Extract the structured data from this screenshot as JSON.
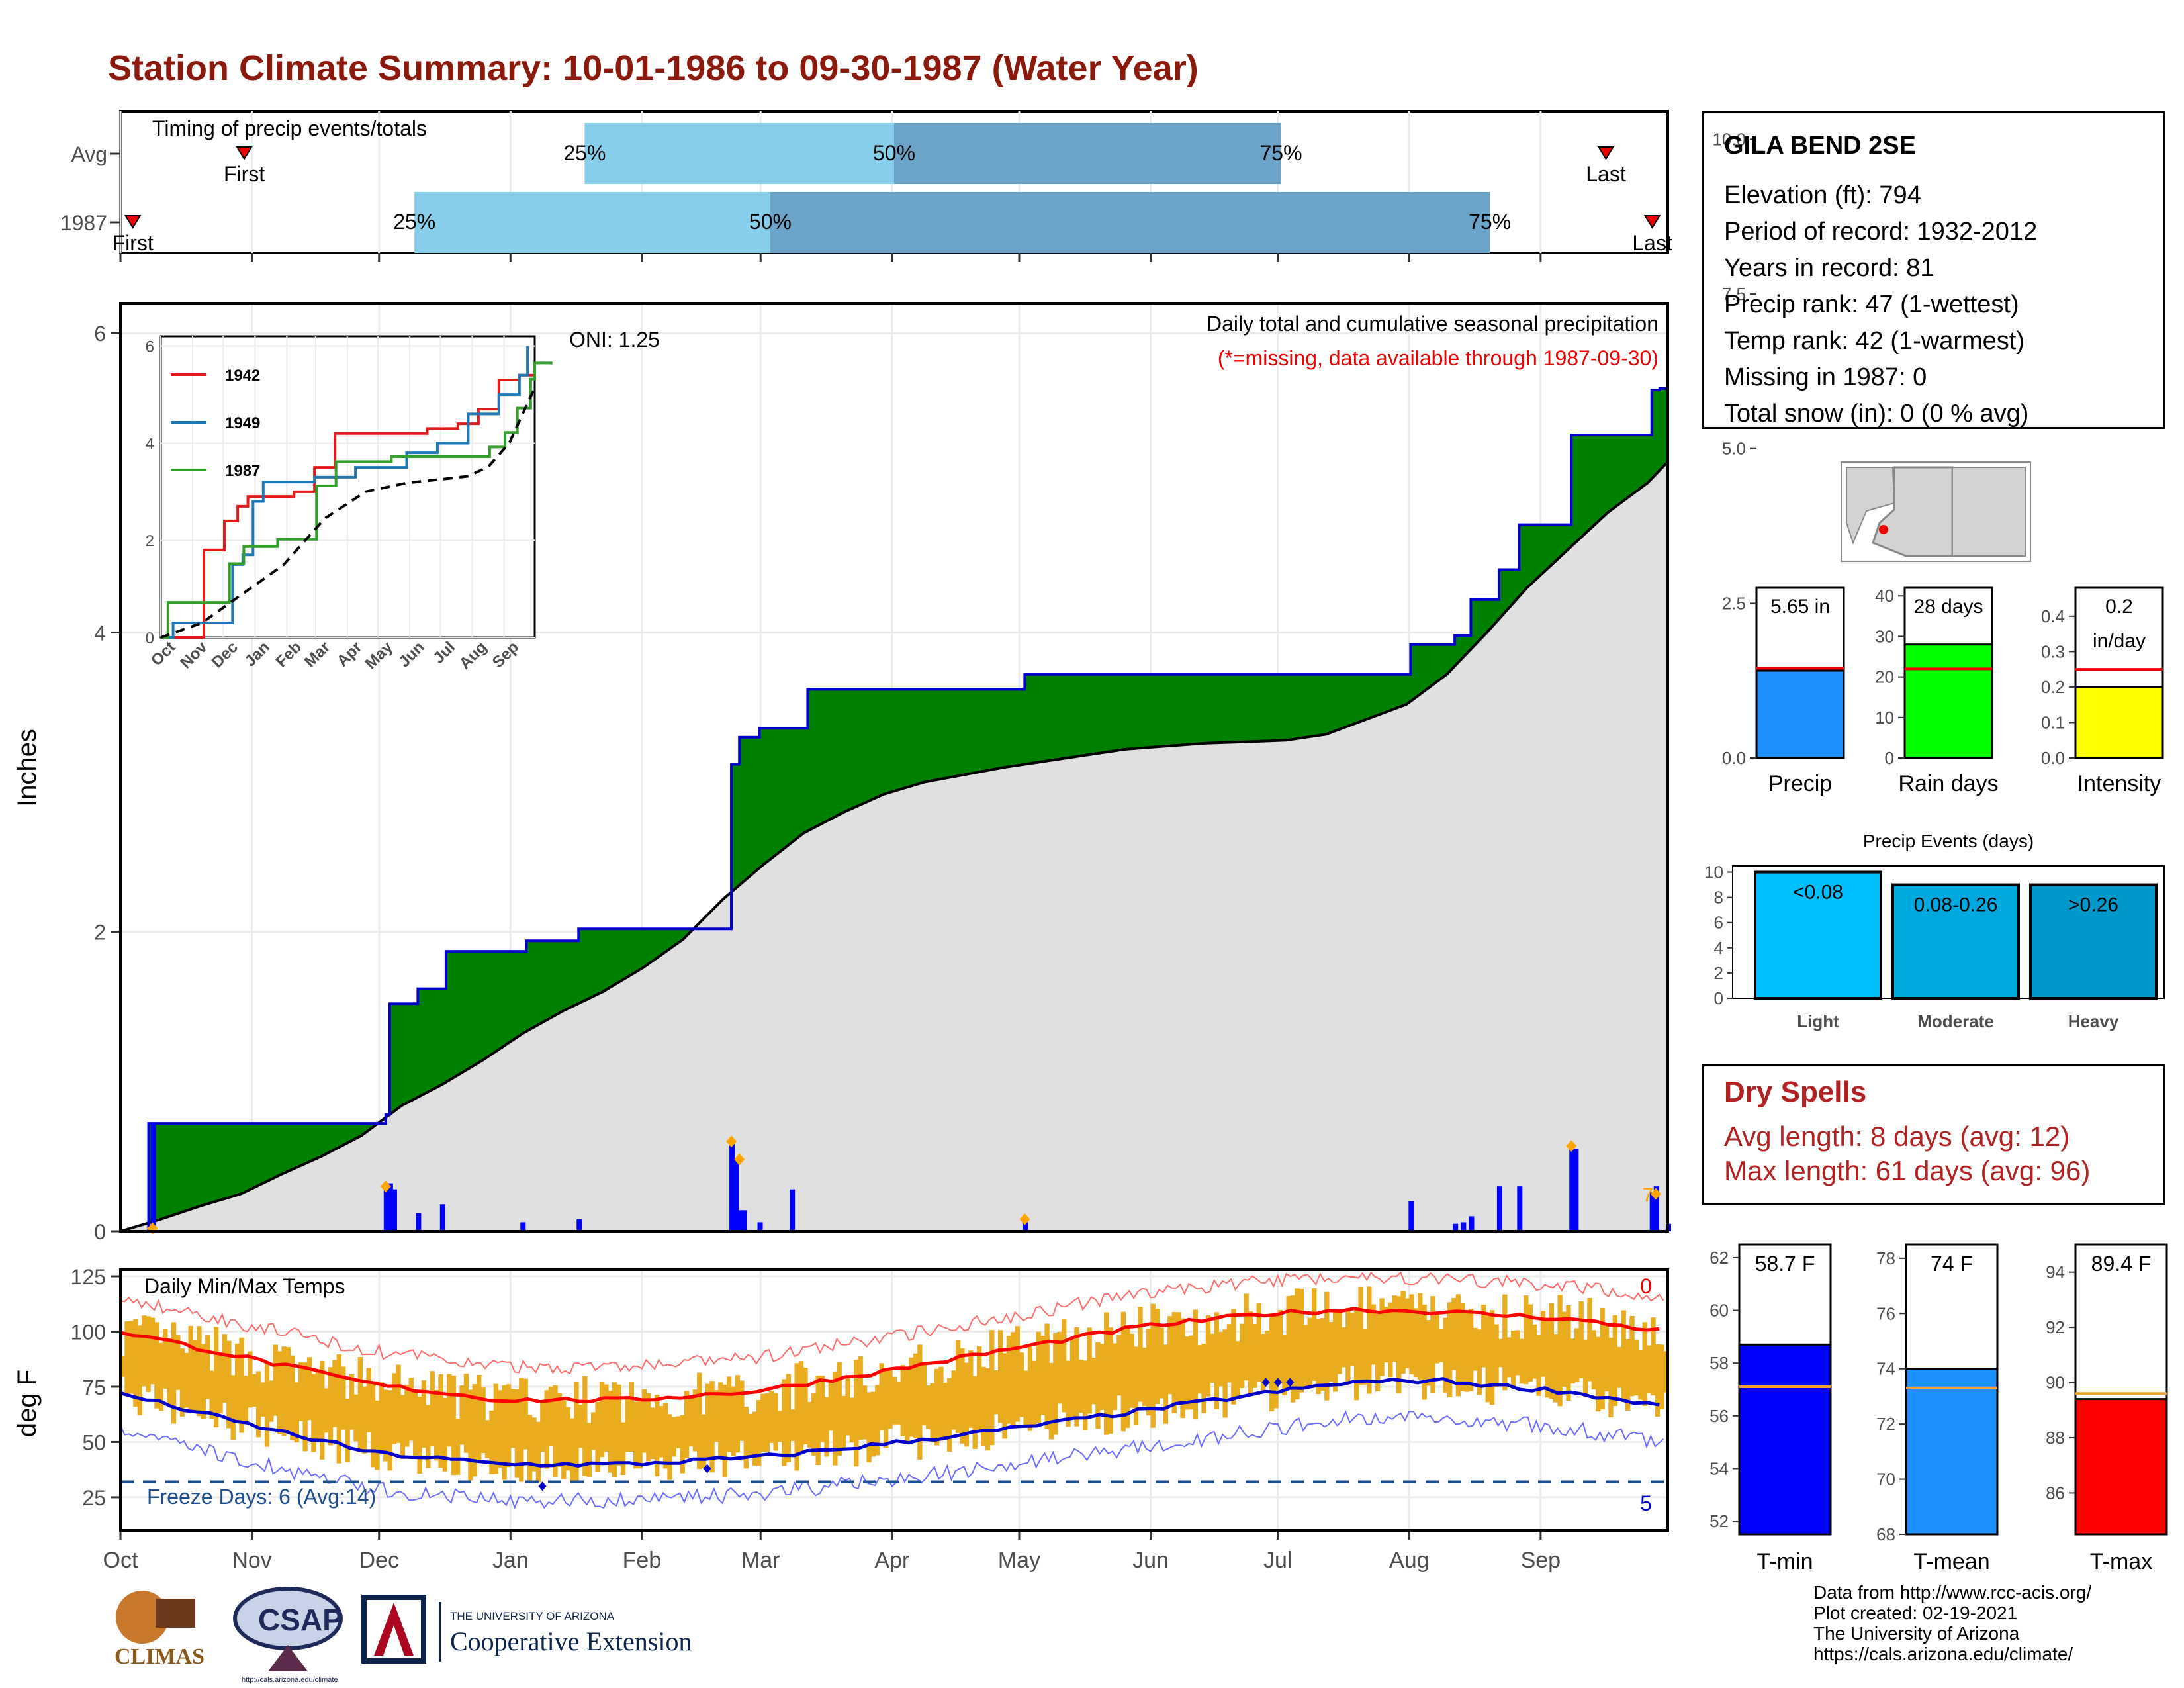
{
  "title": "Station Climate Summary: 10-01-1986 to 09-30-1987 (Water Year)",
  "station": {
    "name": "GILA BEND 2SE",
    "lines": [
      "Elevation (ft): 794",
      "Period of record: 1932-2012",
      "Years in record: 81",
      "Precip rank: 47 (1-wettest)",
      "Temp rank: 42 (1-warmest)",
      "Missing in 1987: 0",
      "Total snow (in): 0 (0 % avg)"
    ]
  },
  "timing": {
    "title": "Timing of precip events/totals",
    "rows": [
      "Avg",
      "1987"
    ],
    "first_label": "First",
    "last_label": "Last",
    "pct_labels": [
      "25%",
      "50%",
      "75%"
    ],
    "avg": {
      "first": 0.08,
      "p25": 0.3,
      "p50": 0.5,
      "p75": 0.75,
      "last": 0.96
    },
    "y1987": {
      "first": 0.008,
      "p25": 0.19,
      "p50": 0.42,
      "p75": 0.885,
      "last": 0.99
    }
  },
  "months": [
    "Oct",
    "Nov",
    "Dec",
    "Jan",
    "Feb",
    "Mar",
    "Apr",
    "May",
    "Jun",
    "Jul",
    "Aug",
    "Sep"
  ],
  "precip_panel": {
    "ylabel": "Inches",
    "ylim": [
      0,
      6.2
    ],
    "yticks": [
      "0",
      "2",
      "4",
      "6"
    ],
    "note_title": "Daily total and cumulative seasonal precipitation",
    "note_missing": "(*=missing, data available through 1987-09-30)",
    "oni": "ONI: 1.25",
    "right_note": "7"
  },
  "inset": {
    "yticks": [
      "0",
      "2",
      "4",
      "6"
    ],
    "months": [
      "Oct",
      "Nov",
      "Dec",
      "Jan",
      "Feb",
      "Mar",
      "Apr",
      "May",
      "Jun",
      "Jul",
      "Aug",
      "Sep"
    ],
    "legend": [
      {
        "label": "1942",
        "color": "#e31a1c"
      },
      {
        "label": "1949",
        "color": "#1f78b4"
      },
      {
        "label": "1987",
        "color": "#33a02c"
      }
    ]
  },
  "temp_panel": {
    "title": "Daily Min/Max Temps",
    "ylabel": "deg F",
    "ylim": [
      10,
      128
    ],
    "yticks": [
      "25",
      "50",
      "75",
      "100",
      "125"
    ],
    "freeze_label": "Freeze Days: 6 (Avg:14)",
    "freeze_line": 32,
    "hot_count": "0",
    "cold_count": "5"
  },
  "mini_bars": [
    {
      "label": "Precip",
      "value_text": "5.65 in",
      "ticks": [
        "0.0",
        "2.5",
        "5.0",
        "7.5",
        "10.0"
      ],
      "color": "#1e90ff"
    },
    {
      "label": "Rain days",
      "value_text": "28 days",
      "ticks": [
        "0",
        "10",
        "20",
        "30",
        "40"
      ],
      "color": "#00ff00"
    },
    {
      "label": "Intensity",
      "value_text": "0.2",
      "value_text2": "in/day",
      "ticks": [
        "0.0",
        "0.1",
        "0.2",
        "0.3",
        "0.4"
      ],
      "color": "#ffff00"
    }
  ],
  "events": {
    "title": "Precip Events (days)",
    "ticks": [
      "0",
      "2",
      "4",
      "6",
      "8",
      "10"
    ],
    "bars": [
      {
        "label": "Light",
        "range": "<0.08",
        "value": 10,
        "color": "#00bfff"
      },
      {
        "label": "Moderate",
        "range": "0.08-0.26",
        "value": 9,
        "color": "#00a8e0"
      },
      {
        "label": "Heavy",
        "range": ">0.26",
        "value": 9,
        "color": "#0099cc"
      }
    ]
  },
  "dry_spells": {
    "title": "Dry Spells",
    "avg": "Avg length: 8 days (avg: 12)",
    "max": "Max length: 61 days (avg: 96)"
  },
  "temp_bars": [
    {
      "label": "T-min",
      "value_text": "58.7 F",
      "ticks": [
        "52",
        "54",
        "56",
        "58",
        "60",
        "62"
      ],
      "color": "#0000ff"
    },
    {
      "label": "T-mean",
      "value_text": "74 F",
      "ticks": [
        "68",
        "70",
        "72",
        "74",
        "76",
        "78"
      ],
      "color": "#1e90ff"
    },
    {
      "label": "T-max",
      "value_text": "89.4 F",
      "ticks": [
        "86",
        "88",
        "90",
        "92",
        "94"
      ],
      "color": "#ff0000"
    }
  ],
  "credits": [
    "Data from http://www.rcc-acis.org/",
    "Plot created: 02-19-2021",
    "The University of Arizona",
    "https://cals.arizona.edu/climate/"
  ],
  "logos": {
    "climas": "CLIMAS",
    "csap": "CSAP",
    "csap_url": "http://cals.arizona.edu/climate",
    "ua_line1": "THE UNIVERSITY OF ARIZONA",
    "ua_line2": "Cooperative Extension"
  },
  "chart_data": [
    {
      "type": "step-area",
      "title": "Daily total and cumulative seasonal precipitation",
      "ylabel": "Inches",
      "ylim": [
        0,
        6.2
      ],
      "cumulative_1987": [
        [
          0,
          0
        ],
        [
          7,
          0.72
        ],
        [
          65,
          0.72
        ],
        [
          66,
          0.78
        ],
        [
          67,
          1.52
        ],
        [
          73,
          1.52
        ],
        [
          74,
          1.62
        ],
        [
          80,
          1.62
        ],
        [
          81,
          1.87
        ],
        [
          100,
          1.87
        ],
        [
          101,
          1.94
        ],
        [
          113,
          1.94
        ],
        [
          114,
          2.02
        ],
        [
          151,
          2.02
        ],
        [
          152,
          3.12
        ],
        [
          154,
          3.3
        ],
        [
          158,
          3.3
        ],
        [
          159,
          3.36
        ],
        [
          170,
          3.36
        ],
        [
          171,
          3.62
        ],
        [
          224,
          3.62
        ],
        [
          225,
          3.72
        ],
        [
          320,
          3.72
        ],
        [
          321,
          3.92
        ],
        [
          331,
          3.92
        ],
        [
          332,
          3.98
        ],
        [
          335,
          3.98
        ],
        [
          336,
          4.22
        ],
        [
          342,
          4.22
        ],
        [
          343,
          4.42
        ],
        [
          347,
          4.42
        ],
        [
          348,
          4.72
        ],
        [
          360,
          4.72
        ],
        [
          361,
          5.32
        ],
        [
          380,
          5.32
        ],
        [
          381,
          5.62
        ],
        [
          383,
          5.63
        ],
        [
          385,
          5.65
        ]
      ],
      "cumulative_avg": [
        [
          0,
          0
        ],
        [
          10,
          0.08
        ],
        [
          20,
          0.17
        ],
        [
          30,
          0.25
        ],
        [
          40,
          0.38
        ],
        [
          50,
          0.5
        ],
        [
          60,
          0.64
        ],
        [
          70,
          0.84
        ],
        [
          80,
          0.98
        ],
        [
          90,
          1.14
        ],
        [
          100,
          1.32
        ],
        [
          110,
          1.47
        ],
        [
          120,
          1.6
        ],
        [
          130,
          1.76
        ],
        [
          140,
          1.95
        ],
        [
          150,
          2.22
        ],
        [
          160,
          2.45
        ],
        [
          170,
          2.66
        ],
        [
          180,
          2.8
        ],
        [
          190,
          2.92
        ],
        [
          200,
          3.0
        ],
        [
          210,
          3.05
        ],
        [
          220,
          3.1
        ],
        [
          230,
          3.14
        ],
        [
          240,
          3.18
        ],
        [
          250,
          3.22
        ],
        [
          260,
          3.24
        ],
        [
          270,
          3.26
        ],
        [
          280,
          3.27
        ],
        [
          290,
          3.28
        ],
        [
          300,
          3.32
        ],
        [
          310,
          3.42
        ],
        [
          320,
          3.52
        ],
        [
          330,
          3.72
        ],
        [
          340,
          4.0
        ],
        [
          350,
          4.3
        ],
        [
          360,
          4.55
        ],
        [
          370,
          4.8
        ],
        [
          380,
          5.0
        ],
        [
          385,
          5.14
        ]
      ],
      "daily_bars_1987": [
        [
          8,
          0.72
        ],
        [
          66,
          0.3
        ],
        [
          67,
          0.32
        ],
        [
          68,
          0.28
        ],
        [
          74,
          0.12
        ],
        [
          80,
          0.18
        ],
        [
          100,
          0.06
        ],
        [
          114,
          0.08
        ],
        [
          152,
          0.6
        ],
        [
          153,
          0.48
        ],
        [
          154,
          0.14
        ],
        [
          155,
          0.14
        ],
        [
          159,
          0.06
        ],
        [
          167,
          0.28
        ],
        [
          225,
          0.06
        ],
        [
          321,
          0.2
        ],
        [
          332,
          0.05
        ],
        [
          334,
          0.06
        ],
        [
          336,
          0.1
        ],
        [
          343,
          0.3
        ],
        [
          348,
          0.3
        ],
        [
          361,
          0.55
        ],
        [
          362,
          0.55
        ],
        [
          381,
          0.26
        ],
        [
          382,
          0.3
        ],
        [
          385,
          0.05
        ]
      ]
    },
    {
      "type": "line",
      "title": "Inset cumulative precipitation",
      "series": [
        {
          "name": "1942",
          "points": [
            [
              0,
              0
            ],
            [
              40,
              0
            ],
            [
              42,
              1.8
            ],
            [
              60,
              1.8
            ],
            [
              62,
              2.4
            ],
            [
              75,
              2.7
            ],
            [
              85,
              2.9
            ],
            [
              130,
              3.0
            ],
            [
              150,
              3.5
            ],
            [
              170,
              4.2
            ],
            [
              230,
              4.2
            ],
            [
              260,
              4.3
            ],
            [
              290,
              4.4
            ],
            [
              310,
              4.7
            ],
            [
              330,
              5.3
            ],
            [
              350,
              5.4
            ],
            [
              365,
              5.6
            ]
          ]
        },
        {
          "name": "1949",
          "points": [
            [
              0,
              0
            ],
            [
              10,
              0
            ],
            [
              12,
              0.3
            ],
            [
              60,
              0.3
            ],
            [
              70,
              1.5
            ],
            [
              80,
              1.7
            ],
            [
              90,
              2.8
            ],
            [
              100,
              3.2
            ],
            [
              110,
              3.2
            ],
            [
              150,
              3.3
            ],
            [
              190,
              3.5
            ],
            [
              240,
              3.8
            ],
            [
              270,
              4.0
            ],
            [
              300,
              4.6
            ],
            [
              330,
              5.0
            ],
            [
              350,
              5.4
            ],
            [
              358,
              6.0
            ]
          ]
        },
        {
          "name": "1987",
          "points": [
            [
              0,
              0
            ],
            [
              7,
              0.72
            ],
            [
              65,
              0.72
            ],
            [
              67,
              1.52
            ],
            [
              81,
              1.87
            ],
            [
              114,
              2.02
            ],
            [
              152,
              3.12
            ],
            [
              171,
              3.62
            ],
            [
              225,
              3.72
            ],
            [
              321,
              3.92
            ],
            [
              336,
              4.22
            ],
            [
              348,
              4.72
            ],
            [
              361,
              5.32
            ],
            [
              381,
              5.62
            ],
            [
              365,
              5.65
            ]
          ]
        },
        {
          "name": "avg",
          "points": [
            [
              0,
              0
            ],
            [
              40,
              0.3
            ],
            [
              80,
              0.9
            ],
            [
              120,
              1.5
            ],
            [
              160,
              2.45
            ],
            [
              200,
              3.0
            ],
            [
              240,
              3.18
            ],
            [
              280,
              3.27
            ],
            [
              300,
              3.32
            ],
            [
              320,
              3.52
            ],
            [
              340,
              4.0
            ],
            [
              365,
              5.14
            ]
          ]
        }
      ]
    },
    {
      "type": "line",
      "title": "Daily Min/Max Temps",
      "ylabel": "deg F",
      "avg_max": [
        [
          0,
          100
        ],
        [
          30,
          88
        ],
        [
          60,
          76
        ],
        [
          90,
          69
        ],
        [
          120,
          69
        ],
        [
          150,
          73
        ],
        [
          180,
          82
        ],
        [
          210,
          92
        ],
        [
          240,
          102
        ],
        [
          270,
          108
        ],
        [
          290,
          110
        ],
        [
          310,
          109
        ],
        [
          340,
          106
        ],
        [
          365,
          100
        ]
      ],
      "avg_min": [
        [
          0,
          72
        ],
        [
          30,
          58
        ],
        [
          60,
          45
        ],
        [
          90,
          40
        ],
        [
          120,
          40
        ],
        [
          150,
          43
        ],
        [
          180,
          49
        ],
        [
          210,
          56
        ],
        [
          240,
          64
        ],
        [
          270,
          72
        ],
        [
          290,
          77
        ],
        [
          310,
          78
        ],
        [
          340,
          73
        ],
        [
          365,
          66
        ]
      ]
    },
    {
      "type": "bar",
      "title": "Summary bars",
      "categories": [
        "Precip",
        "Rain days",
        "Intensity"
      ],
      "values": [
        5.65,
        28,
        0.2
      ],
      "averages": [
        5.8,
        22,
        0.25
      ],
      "ylims": [
        [
          0,
          11
        ],
        [
          0,
          42
        ],
        [
          0,
          0.48
        ]
      ]
    },
    {
      "type": "bar",
      "title": "Precip Events (days)",
      "categories": [
        "Light",
        "Moderate",
        "Heavy"
      ],
      "values": [
        10,
        9,
        9
      ],
      "ylim": [
        0,
        10.5
      ]
    },
    {
      "type": "bar",
      "title": "Temperature bars",
      "categories": [
        "T-min",
        "T-mean",
        "T-max"
      ],
      "values": [
        58.7,
        74,
        89.4
      ],
      "averages": [
        57.1,
        73.3,
        89.6
      ],
      "ylims": [
        [
          51.5,
          62.5
        ],
        [
          68,
          78.5
        ],
        [
          84.5,
          95
        ]
      ]
    }
  ]
}
